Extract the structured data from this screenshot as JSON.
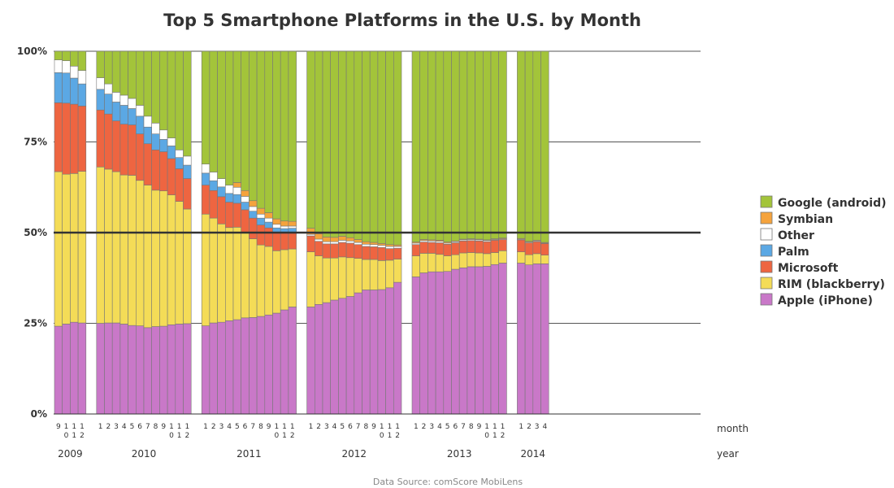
{
  "chart_data": {
    "type": "bar",
    "stacked": true,
    "title": "Top 5 Smartphone Platforms in the U.S. by Month",
    "source": "Data Source: comScore MobiLens",
    "xlabel_month": "month",
    "xlabel_year": "year",
    "ylim": [
      0,
      100
    ],
    "yticks": [
      "0%",
      "25%",
      "50%",
      "75%",
      "100%"
    ],
    "grid": true,
    "reference_line": 50,
    "legend_position": "right",
    "stack_order": [
      "Apple (iPhone)",
      "RIM (blackberry)",
      "Microsoft",
      "Palm",
      "Other",
      "Symbian",
      "Google (android)"
    ],
    "legend": [
      {
        "name": "Google (android)",
        "color": "#a3c43a"
      },
      {
        "name": "Symbian",
        "color": "#f5a33c"
      },
      {
        "name": "Other",
        "color": "#ffffff"
      },
      {
        "name": "Palm",
        "color": "#5ba8e4"
      },
      {
        "name": "Microsoft",
        "color": "#ee6541"
      },
      {
        "name": "RIM (blackberry)",
        "color": "#f4dc57"
      },
      {
        "name": "Apple (iPhone)",
        "color": "#c978c8"
      }
    ],
    "groups": [
      {
        "year": "2009",
        "months": [
          "9",
          "10",
          "11",
          "12"
        ],
        "apple": [
          24.2,
          24.8,
          25.3,
          25.1
        ],
        "rim": [
          42.6,
          41.3,
          41.0,
          41.8
        ],
        "ms": [
          19.0,
          19.6,
          19.1,
          18.0
        ],
        "palm": [
          8.3,
          8.3,
          7.2,
          6.1
        ],
        "other": [
          3.5,
          3.4,
          3.3,
          3.7
        ],
        "symbian": [
          0,
          0,
          0,
          0
        ]
      },
      {
        "year": "2010",
        "months": [
          "1",
          "2",
          "3",
          "4",
          "5",
          "6",
          "7",
          "8",
          "9",
          "10",
          "11",
          "12"
        ],
        "apple": [
          25.0,
          25.1,
          25.1,
          24.8,
          24.4,
          24.3,
          23.8,
          24.1,
          24.2,
          24.6,
          24.8,
          24.9
        ],
        "rim": [
          43.1,
          42.4,
          41.7,
          41.1,
          41.4,
          40.1,
          39.3,
          37.6,
          37.3,
          35.8,
          33.8,
          31.6
        ],
        "ms": [
          15.7,
          15.2,
          14.0,
          14.0,
          13.9,
          12.8,
          11.4,
          11.1,
          10.8,
          10.0,
          9.0,
          8.4
        ],
        "palm": [
          5.7,
          5.5,
          5.2,
          5.2,
          4.5,
          4.9,
          4.6,
          4.4,
          3.4,
          3.5,
          3.1,
          3.7
        ],
        "other": [
          3.2,
          2.8,
          2.7,
          2.8,
          2.8,
          3.0,
          3.0,
          3.0,
          2.6,
          2.2,
          2.1,
          2.5
        ],
        "symbian": [
          0,
          0,
          0,
          0,
          0,
          0,
          0,
          0,
          0,
          0,
          0,
          0
        ]
      },
      {
        "year": "2011",
        "months": [
          "1",
          "2",
          "3",
          "4",
          "5",
          "6",
          "7",
          "8",
          "9",
          "10",
          "11",
          "12"
        ],
        "apple": [
          24.3,
          25.1,
          25.3,
          25.7,
          26.0,
          26.5,
          26.6,
          26.9,
          27.3,
          27.8,
          28.7,
          29.5
        ],
        "rim": [
          30.8,
          28.9,
          27.1,
          25.7,
          25.5,
          23.4,
          21.7,
          19.7,
          18.9,
          17.2,
          16.6,
          16.0
        ],
        "ms": [
          8.0,
          7.6,
          7.5,
          7.0,
          6.6,
          6.4,
          5.7,
          5.5,
          5.1,
          4.9,
          4.6,
          4.6
        ],
        "palm": [
          3.3,
          2.7,
          2.7,
          2.4,
          2.4,
          2.1,
          1.9,
          1.9,
          1.6,
          1.4,
          1.2,
          1.1
        ],
        "other": [
          2.5,
          2.4,
          2.3,
          2.3,
          2.0,
          1.6,
          1.3,
          1.1,
          1.1,
          1.0,
          0.7,
          0.6
        ],
        "symbian": [
          0,
          0,
          0,
          0,
          1.3,
          1.6,
          1.6,
          1.6,
          1.5,
          1.5,
          1.4,
          1.3
        ]
      },
      {
        "year": "2012",
        "months": [
          "1",
          "2",
          "3",
          "4",
          "5",
          "6",
          "7",
          "8",
          "9",
          "10",
          "11",
          "12"
        ],
        "apple": [
          29.5,
          30.2,
          30.7,
          31.4,
          31.9,
          32.4,
          33.4,
          34.2,
          34.2,
          34.3,
          34.8,
          36.3
        ],
        "rim": [
          15.2,
          13.4,
          12.3,
          11.6,
          11.4,
          10.7,
          9.5,
          8.4,
          8.4,
          8.0,
          7.6,
          6.4
        ],
        "ms": [
          4.4,
          4.0,
          3.9,
          3.9,
          4.0,
          4.0,
          3.8,
          3.6,
          3.5,
          3.6,
          3.2,
          3.0
        ],
        "palm": [
          0,
          0,
          0,
          0,
          0,
          0,
          0,
          0,
          0,
          0,
          0,
          0
        ],
        "other": [
          0.4,
          0.6,
          0.6,
          0.6,
          0.6,
          0.6,
          0.6,
          0.6,
          0.6,
          0.6,
          0.6,
          0.5
        ],
        "symbian": [
          1.7,
          1.5,
          1.3,
          1.2,
          1.1,
          0.9,
          0.8,
          0.7,
          0.6,
          0.5,
          0.5,
          0.4
        ]
      },
      {
        "year": "2013",
        "months": [
          "1",
          "2",
          "3",
          "4",
          "5",
          "6",
          "7",
          "8",
          "9",
          "10",
          "11",
          "12"
        ],
        "apple": [
          37.8,
          38.9,
          39.2,
          39.2,
          39.3,
          39.9,
          40.3,
          40.6,
          40.6,
          40.7,
          41.2,
          41.6
        ],
        "rim": [
          5.8,
          5.4,
          5.1,
          4.8,
          4.3,
          4.0,
          4.1,
          3.9,
          3.8,
          3.5,
          3.3,
          3.4
        ],
        "ms": [
          3.1,
          3.1,
          3.0,
          3.2,
          3.2,
          3.3,
          3.3,
          3.3,
          3.3,
          3.3,
          3.4,
          3.1
        ],
        "palm": [
          0,
          0,
          0,
          0,
          0,
          0,
          0,
          0,
          0,
          0,
          0,
          0
        ],
        "other": [
          0.4,
          0.4,
          0.4,
          0.4,
          0.3,
          0.3,
          0.3,
          0.3,
          0.3,
          0.3,
          0.2,
          0.2
        ],
        "symbian": [
          0.3,
          0.3,
          0.3,
          0.3,
          0.3,
          0.2,
          0.2,
          0.2,
          0.2,
          0.2,
          0.2,
          0.2
        ]
      },
      {
        "year": "2014",
        "months": [
          "1",
          "2",
          "3",
          "4"
        ],
        "apple": [
          41.6,
          41.1,
          41.4,
          41.4
        ],
        "rim": [
          3.1,
          2.8,
          2.8,
          2.4
        ],
        "ms": [
          3.3,
          3.3,
          3.3,
          3.2
        ],
        "palm": [
          0,
          0,
          0,
          0
        ],
        "other": [
          0.2,
          0.2,
          0.2,
          0.1
        ],
        "symbian": [
          0.2,
          0.2,
          0.2,
          0.2
        ]
      }
    ]
  }
}
